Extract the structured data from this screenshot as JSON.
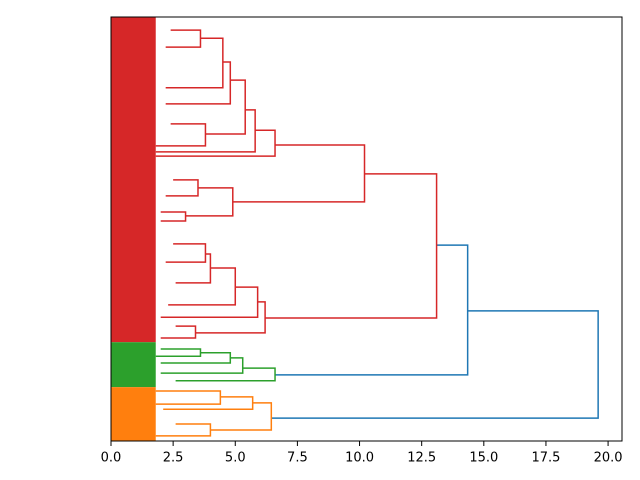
{
  "chart_data": {
    "type": "dendrogram",
    "orientation": "right",
    "xlim": [
      0,
      20.56
    ],
    "ylim": [
      0,
      100
    ],
    "xticks": [
      {
        "value": 0,
        "label": "0.0"
      },
      2.5,
      {
        "value": 5,
        "label": "5.0"
      },
      7.5,
      {
        "value": 10,
        "label": "10.0"
      },
      12.5,
      {
        "value": 15,
        "label": "15.0"
      },
      17.5,
      {
        "value": 20,
        "label": "20.0"
      }
    ],
    "leaf_blocks": [
      {
        "color": "#d62728",
        "span": [
          0,
          76.7
        ],
        "height": 1.8
      },
      {
        "color": "#2ca02c",
        "span": [
          76.7,
          87.3
        ],
        "height": 1.8
      },
      {
        "color": "#ff7f0e",
        "span": [
          87.3,
          100
        ],
        "height": 1.8
      }
    ],
    "links": [
      {
        "color": "#1f77b4",
        "height": 19.6,
        "children": [
          14.35,
          6.45
        ],
        "span": [
          69.3,
          94.6
        ]
      },
      {
        "color": "#1f77b4",
        "height": 14.35,
        "children": [
          13.1,
          6.6
        ],
        "span": [
          53.8,
          84.4
        ]
      },
      {
        "color": "#d62728",
        "height": 13.1,
        "children": [
          10.2,
          6.2
        ],
        "span": [
          37.0,
          71.0
        ]
      },
      {
        "color": "#d62728",
        "height": 10.2,
        "children": [
          6.6,
          4.9
        ],
        "span": [
          30.2,
          43.6
        ]
      },
      {
        "color": "#d62728",
        "height": 6.6,
        "children": [
          5.8,
          1.8
        ],
        "span": [
          26.7,
          32.8
        ]
      },
      {
        "color": "#d62728",
        "height": 5.8,
        "children": [
          5.4,
          1.8
        ],
        "span": [
          21.9,
          31.8
        ]
      },
      {
        "color": "#d62728",
        "height": 5.4,
        "children": [
          4.8,
          3.8
        ],
        "span": [
          14.9,
          27.6
        ]
      },
      {
        "color": "#d62728",
        "height": 4.8,
        "children": [
          4.5,
          2.2
        ],
        "span": [
          10.6,
          20.5
        ]
      },
      {
        "color": "#d62728",
        "height": 4.5,
        "children": [
          3.6,
          2.2
        ],
        "span": [
          5.0,
          16.7
        ]
      },
      {
        "color": "#d62728",
        "height": 3.6,
        "children": [
          2.4,
          2.2
        ],
        "span": [
          3.1,
          7.1
        ]
      },
      {
        "color": "#d62728",
        "height": 3.8,
        "children": [
          2.4,
          1.8
        ],
        "span": [
          25.2,
          30.4
        ]
      },
      {
        "color": "#d62728",
        "height": 4.9,
        "children": [
          3.5,
          3.0
        ],
        "span": [
          40.3,
          46.9
        ]
      },
      {
        "color": "#d62728",
        "height": 3.5,
        "children": [
          2.5,
          2.2
        ],
        "span": [
          38.4,
          42.2
        ]
      },
      {
        "color": "#d62728",
        "height": 3.0,
        "children": [
          2.0,
          2.0
        ],
        "span": [
          46.0,
          48.1
        ]
      },
      {
        "color": "#d62728",
        "height": 6.2,
        "children": [
          5.9,
          3.4
        ],
        "span": [
          67.2,
          74.5
        ]
      },
      {
        "color": "#d62728",
        "height": 5.9,
        "children": [
          5.0,
          2.0
        ],
        "span": [
          63.7,
          70.8
        ]
      },
      {
        "color": "#d62728",
        "height": 5.0,
        "children": [
          4.0,
          2.3
        ],
        "span": [
          59.2,
          67.9
        ]
      },
      {
        "color": "#d62728",
        "height": 4.0,
        "children": [
          3.8,
          2.6
        ],
        "span": [
          55.9,
          62.7
        ]
      },
      {
        "color": "#d62728",
        "height": 3.8,
        "children": [
          2.5,
          2.2
        ],
        "span": [
          53.5,
          57.8
        ]
      },
      {
        "color": "#d62728",
        "height": 3.4,
        "children": [
          2.6,
          2.0
        ],
        "span": [
          72.9,
          75.7
        ]
      },
      {
        "color": "#2ca02c",
        "height": 6.6,
        "children": [
          5.3,
          2.6
        ],
        "span": [
          82.8,
          85.8
        ]
      },
      {
        "color": "#2ca02c",
        "height": 5.3,
        "children": [
          4.8,
          2.0
        ],
        "span": [
          80.4,
          84.0
        ]
      },
      {
        "color": "#2ca02c",
        "height": 4.8,
        "children": [
          3.6,
          2.0
        ],
        "span": [
          79.2,
          81.6
        ]
      },
      {
        "color": "#2ca02c",
        "height": 3.6,
        "children": [
          2.0,
          1.8
        ],
        "span": [
          78.3,
          80.0
        ]
      },
      {
        "color": "#ff7f0e",
        "height": 6.45,
        "children": [
          5.7,
          4.0
        ],
        "span": [
          91.0,
          97.4
        ]
      },
      {
        "color": "#ff7f0e",
        "height": 5.7,
        "children": [
          4.4,
          2.1
        ],
        "span": [
          89.6,
          92.5
        ]
      },
      {
        "color": "#ff7f0e",
        "height": 4.4,
        "children": [
          1.8,
          1.8
        ],
        "span": [
          88.2,
          91.3
        ]
      },
      {
        "color": "#ff7f0e",
        "height": 4.0,
        "children": [
          2.6,
          1.8
        ],
        "span": [
          96.0,
          98.8
        ]
      }
    ]
  }
}
